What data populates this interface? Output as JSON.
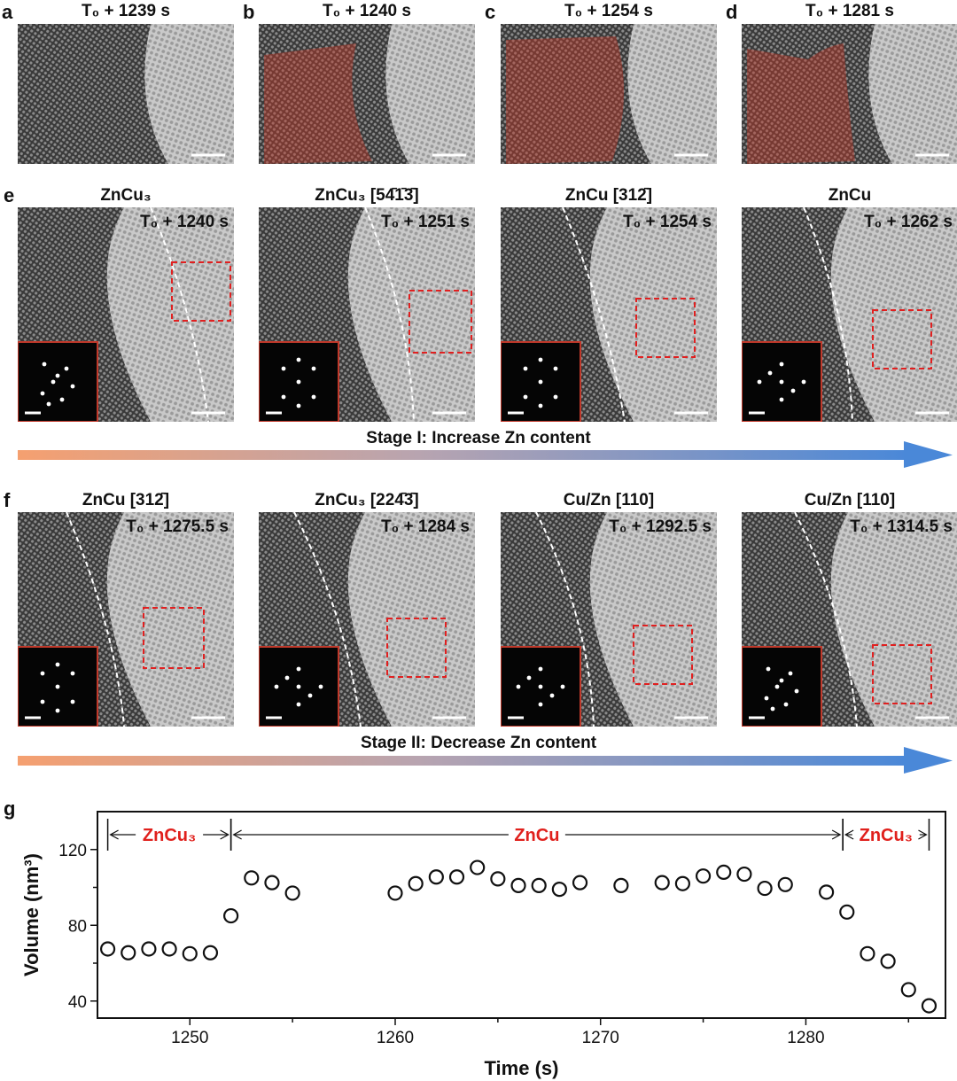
{
  "panels_row1": [
    {
      "label": "a",
      "time": "T₀ + 1239 s"
    },
    {
      "label": "b",
      "time": "T₀ + 1240 s"
    },
    {
      "label": "c",
      "time": "T₀ + 1254 s"
    },
    {
      "label": "d",
      "time": "T₀ + 1281 s"
    }
  ],
  "row_e": {
    "label": "e",
    "panels": [
      {
        "phase": "ZnCu₃",
        "time": "T₀ + 1240 s"
      },
      {
        "phase": "ZnCu₃ [54̄1̄3̄]",
        "time": "T₀ + 1251 s"
      },
      {
        "phase": "ZnCu [312̄]",
        "time": "T₀ + 1254 s"
      },
      {
        "phase": "ZnCu",
        "time": "T₀ + 1262 s"
      }
    ],
    "stage": "Stage I: Increase Zn content"
  },
  "row_f": {
    "label": "f",
    "panels": [
      {
        "phase": "ZnCu [312̄]",
        "time": "T₀ + 1275.5 s"
      },
      {
        "phase": "ZnCu₃ [224̄3̄]",
        "time": "T₀ + 1284 s"
      },
      {
        "phase": "Cu/Zn [110]",
        "time": "T₀ + 1292.5 s"
      },
      {
        "phase": "Cu/Zn [110]",
        "time": "T₀ + 1314.5 s"
      }
    ],
    "stage": "Stage II: Decrease Zn content"
  },
  "colors": {
    "overlay": "#c0392b",
    "dashed_box": "#e02020",
    "arrow_start": "#f5a070",
    "arrow_end": "#4a88d8",
    "phase_label": "#e0201c"
  },
  "chart_data": {
    "label": "g",
    "type": "scatter",
    "xlabel": "Time (s)",
    "ylabel": "Volume (nm³)",
    "xlim": [
      1245.5,
      1286.8
    ],
    "ylim": [
      31,
      140
    ],
    "xticks": [
      1250,
      1260,
      1270,
      1280
    ],
    "yticks": [
      40,
      80,
      120
    ],
    "points": [
      [
        1246,
        67.5
      ],
      [
        1247,
        65.5
      ],
      [
        1248,
        67.5
      ],
      [
        1249,
        67.5
      ],
      [
        1250,
        65
      ],
      [
        1251,
        65.5
      ],
      [
        1252,
        85
      ],
      [
        1253,
        105
      ],
      [
        1254,
        102.5
      ],
      [
        1255,
        97
      ],
      [
        1260,
        97
      ],
      [
        1261,
        102
      ],
      [
        1262,
        105.5
      ],
      [
        1263,
        105.5
      ],
      [
        1264,
        110.5
      ],
      [
        1265,
        104.5
      ],
      [
        1266,
        101
      ],
      [
        1267,
        101
      ],
      [
        1268,
        99
      ],
      [
        1269,
        102.5
      ],
      [
        1271,
        101
      ],
      [
        1273,
        102.5
      ],
      [
        1274,
        102
      ],
      [
        1275,
        106
      ],
      [
        1276,
        108
      ],
      [
        1277,
        107
      ],
      [
        1278,
        99.5
      ],
      [
        1279,
        101.5
      ],
      [
        1281,
        97.5
      ],
      [
        1282,
        87
      ],
      [
        1283,
        65
      ],
      [
        1284,
        61
      ],
      [
        1285,
        46
      ],
      [
        1286,
        37.5
      ]
    ],
    "phase_regions": [
      {
        "name": "ZnCu₃",
        "from": 1246,
        "to": 1252
      },
      {
        "name": "ZnCu",
        "from": 1252,
        "to": 1281.8
      },
      {
        "name": "ZnCu₃",
        "from": 1281.8,
        "to": 1286
      }
    ]
  }
}
